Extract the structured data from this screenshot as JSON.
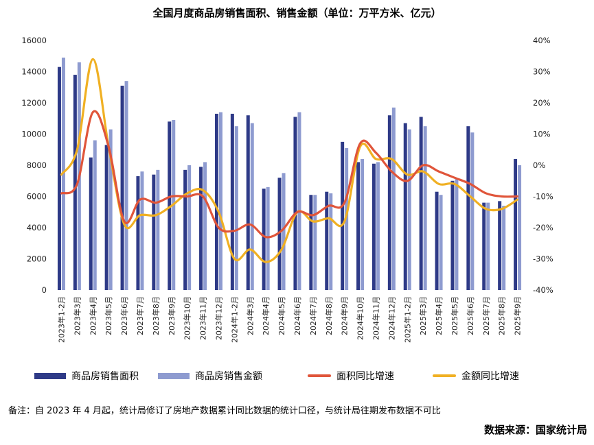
{
  "chart_data": {
    "type": "bar-line-combo",
    "title": "全国月度商品房销售面积、销售金额（单位：万平方米、亿元）",
    "categories": [
      "2023年1-2月",
      "2023年3月",
      "2023年4月",
      "2023年5月",
      "2023年6月",
      "2023年7月",
      "2023年8月",
      "2023年9月",
      "2023年10月",
      "2023年11月",
      "2023年12月",
      "2024年1-2月",
      "2024年3月",
      "2024年4月",
      "2024年5月",
      "2024年6月",
      "2024年7月",
      "2024年8月",
      "2024年9月",
      "2024年10月",
      "2024年11月",
      "2024年12月",
      "2025年1-2月",
      "2025年3月",
      "2025年4月",
      "2025年5月",
      "2025年6月",
      "2025年7月",
      "2025年8月",
      "2025年9月"
    ],
    "left_axis": {
      "min": 0,
      "max": 16000,
      "ticks": [
        "0",
        "2000",
        "4000",
        "6000",
        "8000",
        "10000",
        "12000",
        "14000",
        "16000"
      ]
    },
    "right_axis": {
      "min": -40,
      "max": 40,
      "ticks": [
        "-40%",
        "-30%",
        "-20%",
        "-10%",
        "0%",
        "10%",
        "20%",
        "30%",
        "40%"
      ]
    },
    "series": [
      {
        "name": "商品房销售面积",
        "type": "bar",
        "axis": "left",
        "color": "#2e3a87",
        "values": [
          14300,
          13800,
          8500,
          9300,
          13100,
          7300,
          7400,
          10800,
          7700,
          7900,
          11300,
          11300,
          11200,
          6500,
          7200,
          11100,
          6100,
          6300,
          9500,
          8200,
          8100,
          11200,
          10700,
          11100,
          6300,
          7000,
          10500,
          5600,
          5700,
          8400
        ]
      },
      {
        "name": "商品房销售金额",
        "type": "bar",
        "axis": "left",
        "color": "#8e9bd0",
        "values": [
          14900,
          14600,
          9600,
          10300,
          13400,
          7600,
          7700,
          10900,
          8000,
          8200,
          11400,
          10500,
          10700,
          6600,
          7500,
          11400,
          6100,
          6200,
          9100,
          8400,
          8200,
          11700,
          10300,
          10500,
          6100,
          7100,
          10100,
          5600,
          5400,
          8000
        ]
      },
      {
        "name": "面积同比增速",
        "type": "line",
        "axis": "right",
        "color": "#e0553a",
        "values": [
          -9,
          -6,
          17,
          6,
          -18,
          -11,
          -12,
          -10,
          -10,
          -10,
          -20,
          -21,
          -19,
          -23,
          -21,
          -15,
          -16,
          -13,
          -12,
          7,
          4,
          -2,
          -5,
          0,
          -2,
          -4,
          -6,
          -9,
          -10,
          -10
        ]
      },
      {
        "name": "金额同比增速",
        "type": "line",
        "axis": "right",
        "color": "#f0b023",
        "values": [
          -3,
          5,
          34,
          6,
          -19,
          -16,
          -16,
          -13,
          -9,
          -8,
          -15,
          -30,
          -27,
          -31,
          -27,
          -15,
          -18,
          -17,
          -18,
          6,
          2,
          2,
          -3,
          -2,
          -6,
          -6,
          -10,
          -14,
          -14,
          -11
        ]
      }
    ]
  },
  "note": "备注：自 2023 年 4 月起，统计局修订了房地产数据累计同比数据的统计口径，与统计局往期发布数据不可比",
  "source": "数据来源：国家统计局"
}
